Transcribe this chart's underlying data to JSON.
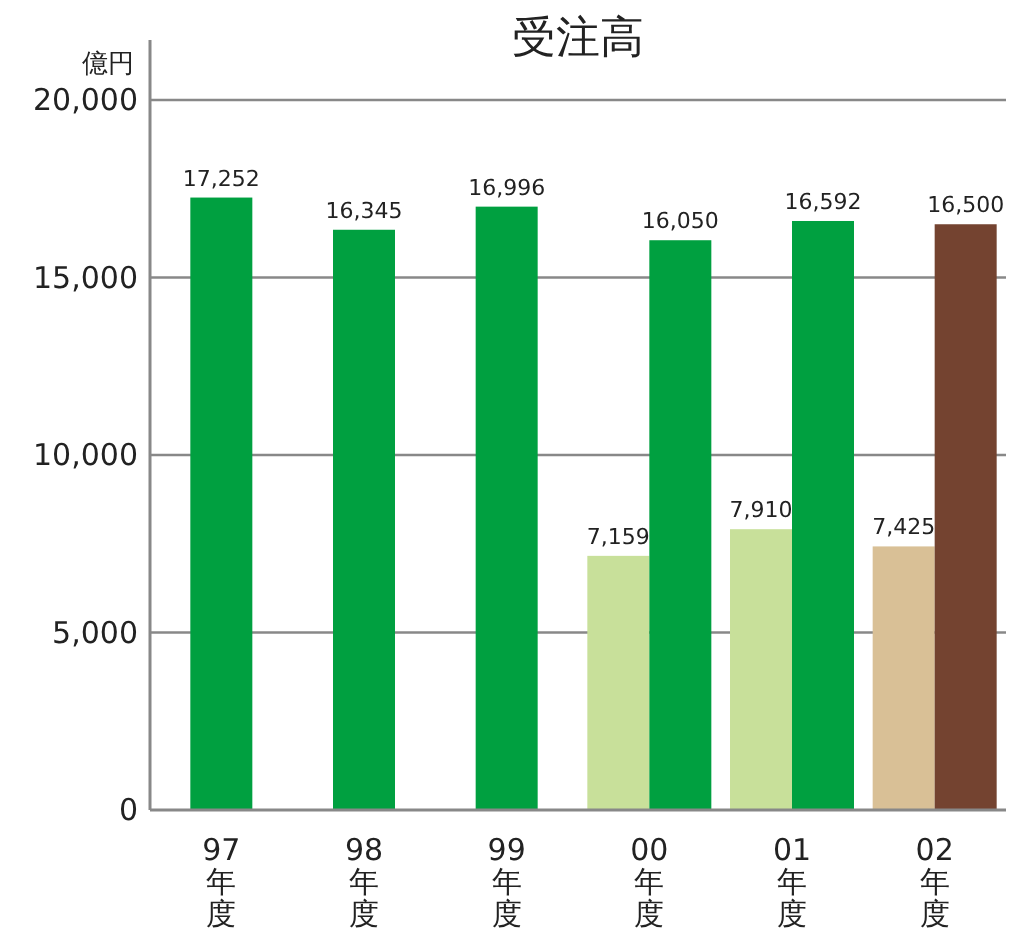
{
  "chart_data": {
    "type": "bar",
    "title": "受注高",
    "ylabel": "億円",
    "categories": [
      "97年度",
      "98年度",
      "99年度",
      "00年度",
      "01年度",
      "02年度"
    ],
    "series": [
      {
        "colors": [
          null,
          null,
          null,
          "#c8e09a",
          "#c8e09a",
          "#d9c096"
        ],
        "values": [
          null,
          null,
          null,
          7159,
          7910,
          7425
        ],
        "value_labels": [
          null,
          null,
          null,
          "7,159",
          "7,910",
          "7,425"
        ]
      },
      {
        "colors": [
          "#00a040",
          "#00a040",
          "#00a040",
          "#00a040",
          "#00a040",
          "#744330"
        ],
        "values": [
          17252,
          16345,
          16996,
          16050,
          16592,
          16500
        ],
        "value_labels": [
          "17,252",
          "16,345",
          "16,996",
          "16,050",
          "16,592",
          "16,500"
        ]
      }
    ],
    "ylim": [
      0,
      20000
    ],
    "yticks": [
      {
        "value": 0,
        "label": "0"
      },
      {
        "value": 5000,
        "label": "5,000"
      },
      {
        "value": 10000,
        "label": "10,000"
      },
      {
        "value": 15000,
        "label": "15,000"
      },
      {
        "value": 20000,
        "label": "20,000"
      }
    ],
    "grid": "y"
  }
}
